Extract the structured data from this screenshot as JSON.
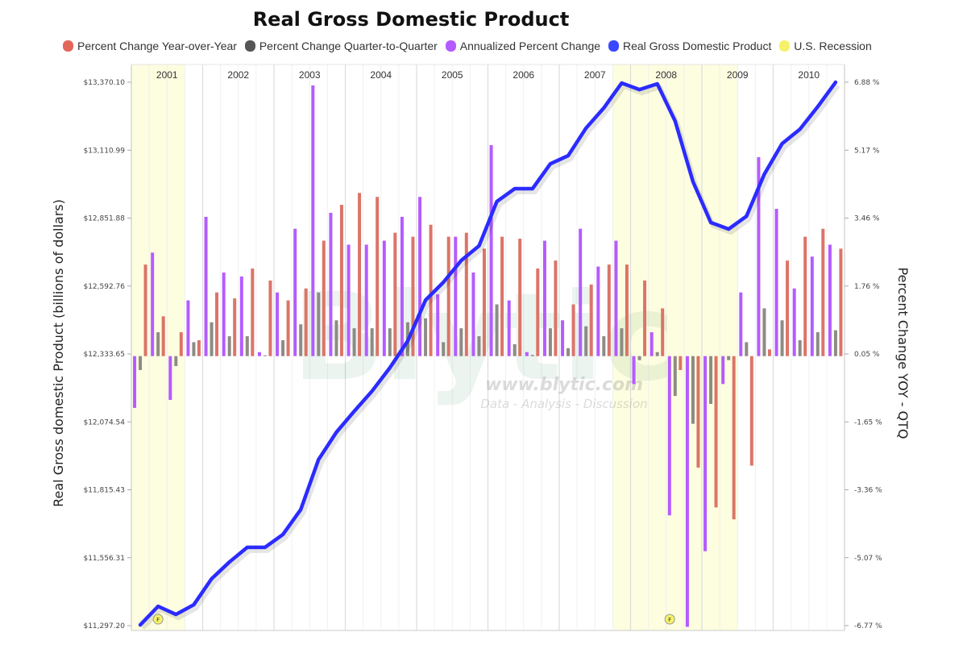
{
  "title": "Real Gross Domestic Product",
  "legend": [
    {
      "label": "Percent Change Year-over-Year",
      "color": "#e3665a"
    },
    {
      "label": "Percent Change Quarter-to-Quarter",
      "color": "#555555"
    },
    {
      "label": "Annualized Percent Change",
      "color": "#b45cff"
    },
    {
      "label": "Real Gross Domestic Product",
      "color": "#3a48ff"
    },
    {
      "label": "U.S. Recession",
      "color": "#f5f26a"
    }
  ],
  "watermark": {
    "logo": "Blytic",
    "url": "www.blytic.com",
    "tagline": "Data - Analysis - Discussion"
  },
  "chart_data": {
    "type": "bar+line",
    "title": "Real Gross Domestic Product",
    "ylabel_left": "Real Gross domestic Product (billions of dollars)",
    "ylabel_right": "Percent Change YOY - QTQ",
    "years": [
      "2001",
      "2002",
      "2003",
      "2004",
      "2005",
      "2006",
      "2007",
      "2008",
      "2009",
      "2010"
    ],
    "left_ticks": [
      "$13,370.10",
      "$13,110.99",
      "$12,851.88",
      "$12,592.76",
      "$12,333.65",
      "$12,074.54",
      "$11,815.43",
      "$11,556.31",
      "$11,297.20"
    ],
    "right_ticks": [
      "6.88 %",
      "5.17 %",
      "3.46 %",
      "1.76 %",
      "0.05 %",
      "-1.65 %",
      "-3.36 %",
      "-5.07 %",
      "-6.77 %"
    ],
    "ylim_left": [
      11297.2,
      13370.1
    ],
    "ylim_right": [
      -6.77,
      6.88
    ],
    "recessions": [
      {
        "start_quarter": 0,
        "end_quarter": 2
      },
      {
        "start_quarter": 27,
        "end_quarter": 33
      }
    ],
    "markers": [
      {
        "quarter": 1,
        "label": "F"
      },
      {
        "quarter": 29.7,
        "label": "F"
      }
    ],
    "series": [
      {
        "name": "Real Gross Domestic Product",
        "axis": "left",
        "type": "line",
        "color": "#2b2bff",
        "values": [
          11300,
          11371,
          11340,
          11377,
          11476,
          11540,
          11596,
          11596,
          11645,
          11740,
          11931,
          12035,
          12115,
          12192,
          12281,
          12383,
          12539,
          12607,
          12690,
          12746,
          12915,
          12964,
          12964,
          13059,
          13090,
          13195,
          13272,
          13367,
          13342,
          13364,
          13222,
          12991,
          12835,
          12810,
          12859,
          13019,
          13136,
          13191,
          13277,
          13370
        ]
      },
      {
        "name": "Annualized Percent Change",
        "axis": "right",
        "type": "bar",
        "color": "#b45cff",
        "values": [
          -1.3,
          2.6,
          -1.1,
          1.4,
          3.5,
          2.1,
          2.0,
          0.1,
          1.6,
          3.2,
          6.8,
          3.6,
          2.8,
          2.8,
          2.9,
          3.5,
          4.0,
          1.55,
          3.0,
          2.1,
          5.3,
          1.4,
          0.1,
          2.9,
          0.9,
          3.2,
          2.25,
          2.9,
          -0.7,
          0.6,
          -4.0,
          -6.8,
          -4.9,
          -0.7,
          1.6,
          5.0,
          3.7,
          1.7,
          2.5,
          2.8
        ]
      },
      {
        "name": "Percent Change Quarter-to-Quarter",
        "axis": "right",
        "type": "bar",
        "color": "#8c8c84",
        "values": [
          -0.35,
          0.6,
          -0.25,
          0.35,
          0.85,
          0.5,
          0.5,
          0.02,
          0.4,
          0.8,
          1.6,
          0.9,
          0.7,
          0.7,
          0.7,
          0.85,
          0.95,
          0.35,
          0.7,
          0.5,
          1.3,
          0.3,
          0.03,
          0.7,
          0.2,
          0.75,
          0.5,
          0.7,
          -0.1,
          0.1,
          -1.0,
          -1.7,
          -1.2,
          -0.1,
          0.35,
          1.2,
          0.9,
          0.4,
          0.6,
          0.65
        ]
      },
      {
        "name": "Percent Change Year-over-Year",
        "axis": "right",
        "type": "bar",
        "color": "#dc7468",
        "values": [
          2.3,
          1.0,
          0.6,
          0.4,
          1.6,
          1.45,
          2.2,
          1.9,
          1.4,
          1.7,
          2.9,
          3.8,
          4.1,
          4.0,
          3.1,
          3.0,
          3.3,
          3.0,
          3.1,
          2.7,
          3.0,
          2.95,
          2.2,
          2.4,
          1.3,
          1.8,
          2.3,
          2.3,
          1.9,
          1.2,
          -0.35,
          -2.8,
          -3.8,
          -4.1,
          -2.75,
          0.17,
          2.4,
          3.0,
          3.2,
          2.7
        ]
      }
    ]
  }
}
